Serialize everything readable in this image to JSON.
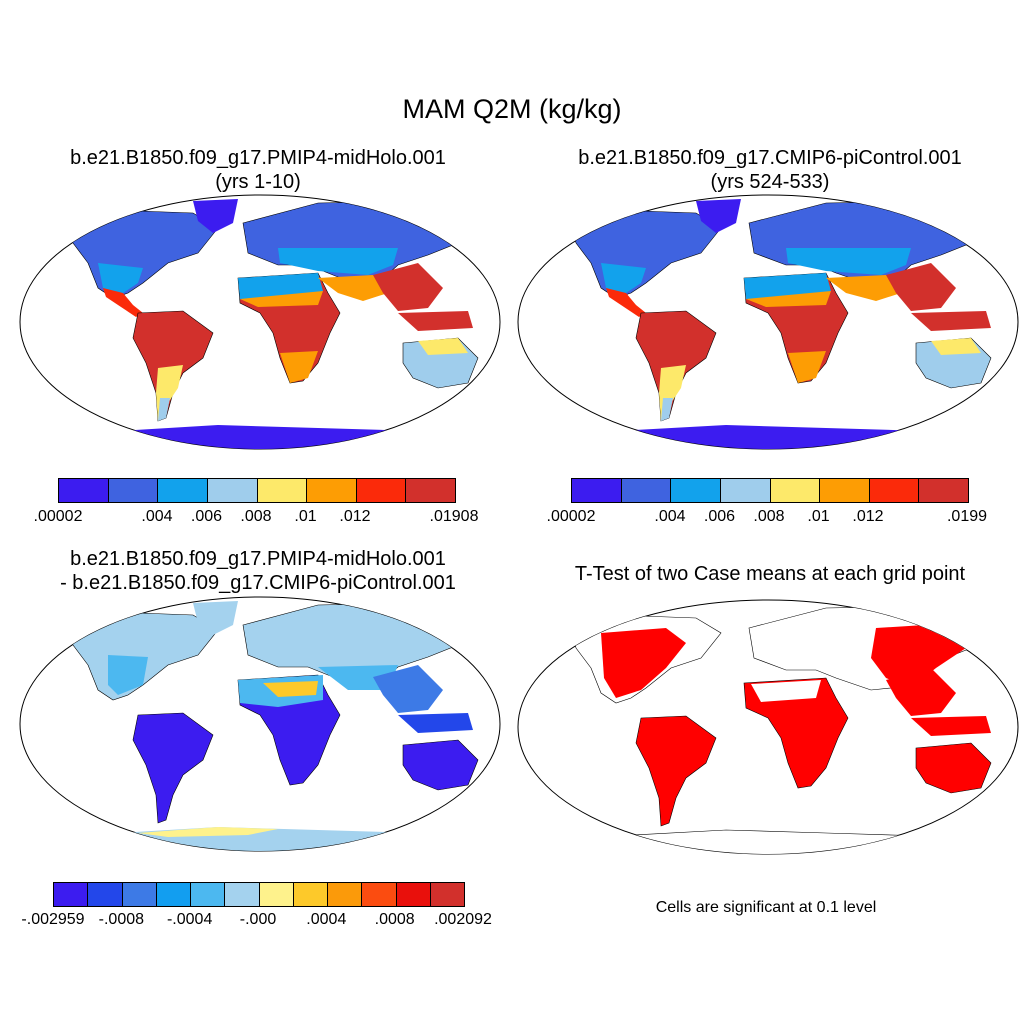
{
  "main_title": "MAM Q2M (kg/kg)",
  "panels": {
    "p1": {
      "title_line1": "b.e21.B1850.f09_g17.PMIP4-midHolo.001",
      "title_line2": "(yrs 1-10)"
    },
    "p2": {
      "title_line1": "b.e21.B1850.f09_g17.CMIP6-piControl.001",
      "title_line2": "(yrs 524-533)"
    },
    "p3": {
      "title_line1": "b.e21.B1850.f09_g17.PMIP4-midHolo.001",
      "title_line2": "- b.e21.B1850.f09_g17.CMIP6-piControl.001"
    },
    "p4": {
      "title_line1": "T-Test of two Case means at each grid point",
      "note": "Cells are significant at 0.1 level"
    }
  },
  "colorbars": {
    "cb1": {
      "colors": [
        "#3c1cf0",
        "#3f63e0",
        "#12a2ec",
        "#9fcdec",
        "#fde96a",
        "#fd9d04",
        "#fb2a0a",
        "#d2302c"
      ],
      "labels": [
        ".00002",
        ".004",
        ".006",
        ".008",
        ".01",
        ".012",
        ".01908"
      ]
    },
    "cb2": {
      "colors": [
        "#3c1cf0",
        "#3f63e0",
        "#12a2ec",
        "#9fcdec",
        "#fde96a",
        "#fd9d04",
        "#fb2a0a",
        "#d2302c"
      ],
      "labels": [
        ".00002",
        ".004",
        ".006",
        ".008",
        ".01",
        ".012",
        ".0199"
      ]
    },
    "cb3": {
      "colors": [
        "#3c1cf0",
        "#2347ea",
        "#3d7ae6",
        "#129ef0",
        "#4cb8f0",
        "#a4d2ee",
        "#fef28c",
        "#fdc92a",
        "#fb9a0a",
        "#fb4c10",
        "#e9100c",
        "#d2302c"
      ],
      "labels": [
        "-.002959",
        "-.0008",
        "-.0004",
        "-.000",
        ".0004",
        ".0008",
        ".002092"
      ]
    }
  },
  "map_colors": {
    "water": "#ffffff",
    "significant": "#ff0000",
    "outline": "#000000"
  }
}
